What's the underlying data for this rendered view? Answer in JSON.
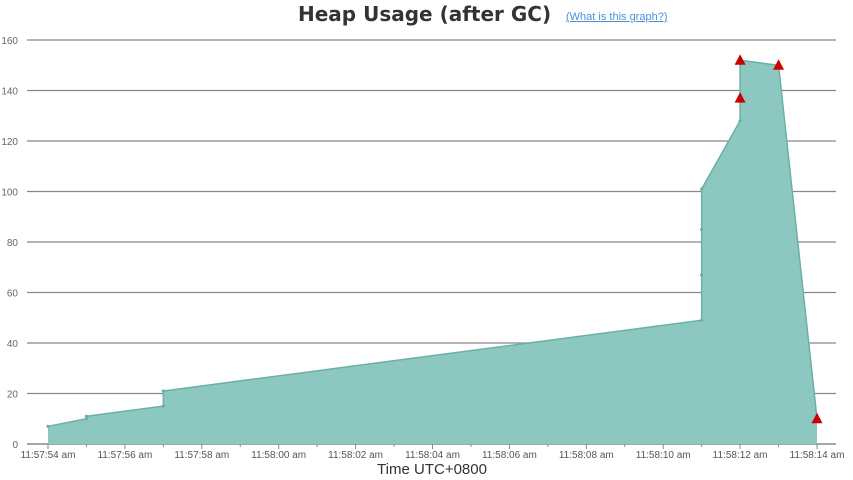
{
  "header": {
    "title": "Heap Usage (after GC)",
    "help_link": "(What is this graph?)"
  },
  "chart_data": {
    "type": "area",
    "title": "Heap Usage (after GC)",
    "xlabel": "Time UTC+0800",
    "ylabel": "",
    "ylim": [
      0,
      160
    ],
    "yticks": [
      0,
      20,
      40,
      60,
      80,
      100,
      120,
      140,
      160
    ],
    "xlim": [
      "11:57:54",
      "11:58:14"
    ],
    "xtick_labels": [
      "11:57:54 am",
      "11:57:56 am",
      "11:57:58 am",
      "11:58:00 am",
      "11:58:02 am",
      "11:58:04 am",
      "11:58:06 am",
      "11:58:08 am",
      "11:58:10 am",
      "11:58:12 am",
      "11:58:14 am"
    ],
    "grid": true,
    "series": [
      {
        "x": [
          "11:57:54.0",
          "11:57:55.0",
          "11:57:55.0",
          "11:57:57.0",
          "11:57:57.0",
          "11:58:11.0",
          "11:58:11.0",
          "11:58:11.0",
          "11:58:11.0",
          "11:58:12.0",
          "11:58:12.0",
          "11:58:12.0",
          "11:58:13.0",
          "11:58:14.0"
        ],
        "values": [
          7,
          10,
          11,
          15,
          21,
          49,
          67,
          85,
          101,
          128,
          137,
          152,
          150,
          10
        ]
      }
    ],
    "full_gc_markers": {
      "x": [
        "11:58:12.0",
        "11:58:12.0",
        "11:58:13.0",
        "11:58:14.0"
      ],
      "values": [
        137,
        152,
        150,
        10
      ]
    },
    "colors": {
      "area_fill": "#8dc8c0",
      "area_line": "#6ab0a6",
      "marker": "#cc0000",
      "grid": "#888888",
      "title": "#333333",
      "link": "#4a90d9"
    }
  }
}
